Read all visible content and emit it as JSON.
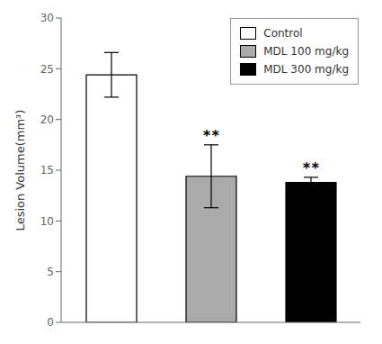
{
  "chart_data": {
    "type": "bar",
    "categories": [
      "Control",
      "MDL 100 mg/kg",
      "MDL 300 mg/kg"
    ],
    "values": [
      24.4,
      14.4,
      13.8
    ],
    "errors_lower": [
      2.2,
      3.1,
      0.5
    ],
    "errors_upper": [
      2.2,
      3.1,
      0.5
    ],
    "colors": [
      "#ffffff",
      "#aaaaaa",
      "#000000"
    ],
    "annotations": [
      {
        "category": "MDL 100 mg/kg",
        "text": "**"
      },
      {
        "category": "MDL 300 mg/kg",
        "text": "**"
      }
    ],
    "ylabel": "Lesion Volume(mm³)",
    "ylim": [
      0,
      30
    ],
    "yticks": [
      0,
      5,
      10,
      15,
      20,
      25,
      30
    ],
    "legend": "upper right",
    "tick_labels": "y",
    "grid": false
  }
}
